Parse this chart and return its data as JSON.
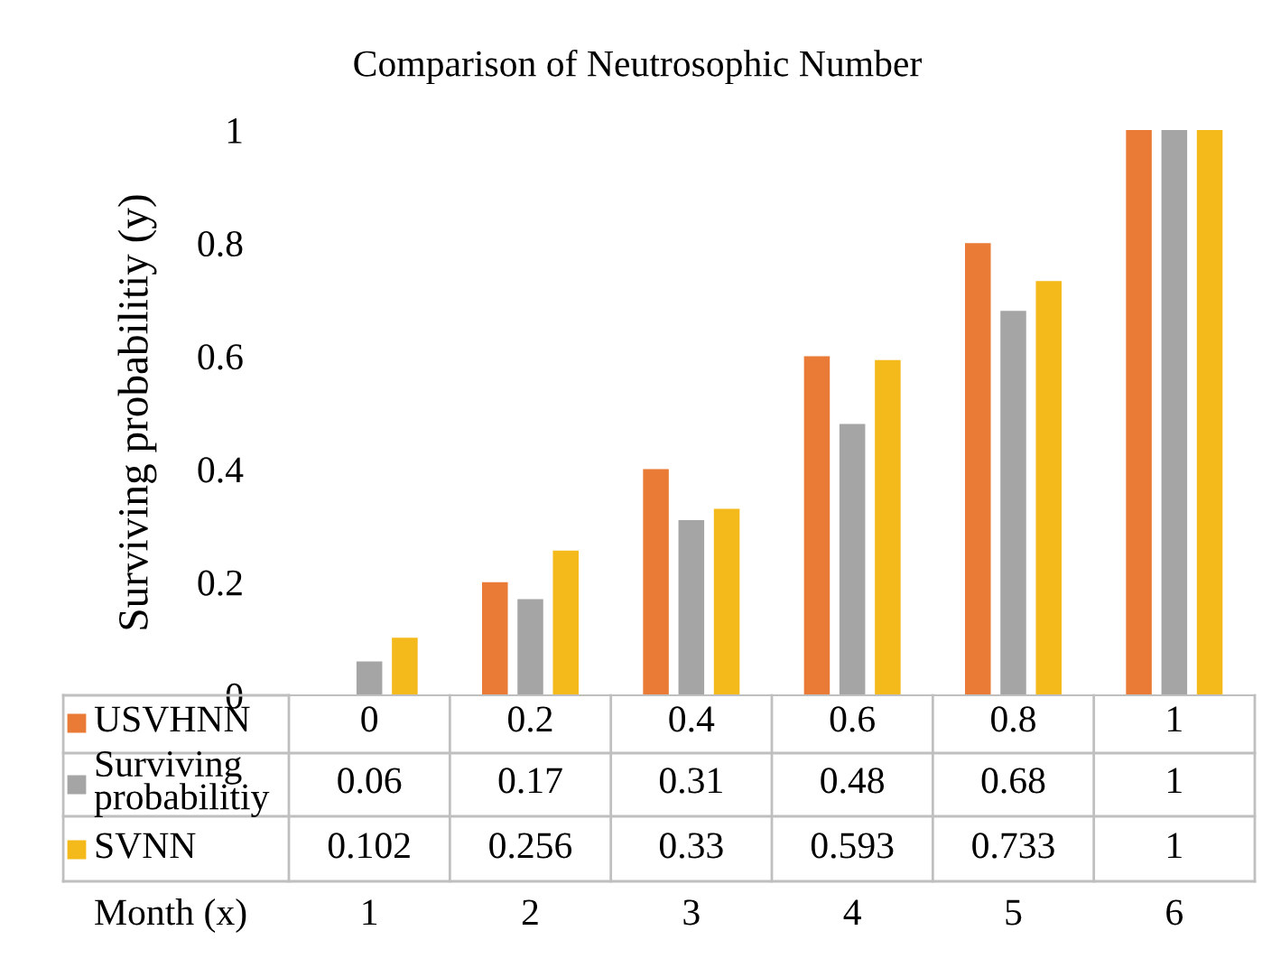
{
  "chart_data": {
    "type": "bar",
    "title": "Comparison of Neutrosophic Number",
    "xlabel": "Month (x)",
    "ylabel": "Surviving probabilitiy (y)",
    "categories": [
      "1",
      "2",
      "3",
      "4",
      "5",
      "6"
    ],
    "series": [
      {
        "name": "USVHNN",
        "color": "#e97b37",
        "values": [
          0,
          0.2,
          0.4,
          0.6,
          0.8,
          1
        ]
      },
      {
        "name": "Surviving probabilitiy",
        "color": "#a5a5a5",
        "values": [
          0.06,
          0.17,
          0.31,
          0.48,
          0.68,
          1
        ]
      },
      {
        "name": "SVNN",
        "color": "#f4b91a",
        "values": [
          0.102,
          0.256,
          0.33,
          0.593,
          0.733,
          1
        ]
      }
    ],
    "ylim": [
      0,
      1
    ],
    "yticks": [
      0,
      0.2,
      0.4,
      0.6,
      0.8,
      1
    ],
    "grid": false,
    "legend": "bottom left",
    "data_labels": true
  }
}
